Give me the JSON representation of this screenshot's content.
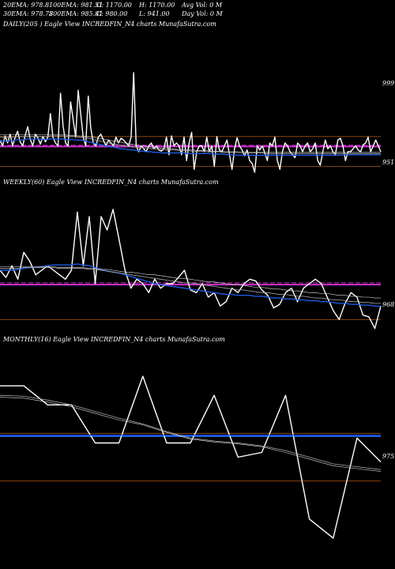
{
  "header": {
    "row1": [
      {
        "label": "20EMA: 978.8"
      },
      {
        "label": "100EMA: 981.51"
      },
      {
        "label": "O: 1170.00"
      },
      {
        "label": "H: 1170.00"
      },
      {
        "label": "Avg Vol: 0  M"
      }
    ],
    "row2": [
      {
        "label": "30EMA: 978.78"
      },
      {
        "label": "200EMA: 985.81"
      },
      {
        "label": "C: 980.00"
      },
      {
        "label": "L: 941.00"
      },
      {
        "label": "Day Vol: 0  M"
      }
    ]
  },
  "colors": {
    "background": "#000000",
    "price": "#ffffff",
    "ema_blue": "#1e5adc",
    "level_magenta": "#cc33cc",
    "grid_brown": "#8b4513",
    "ema_gray": "#aaaaaa"
  },
  "chart_data": [
    {
      "type": "line",
      "title": "DAILY(205                              ) Eagle  View  INCREDFIN_N4  charts MunafaSutra.com",
      "y_tick_labels": [
        "999",
        "951"
      ],
      "ylim": [
        940,
        1180
      ],
      "series": [
        {
          "kind": "price",
          "values": [
            995,
            985,
            1002,
            990,
            1005,
            985,
            1000,
            1010,
            992,
            985,
            1003,
            1018,
            996,
            985,
            1005,
            999,
            988,
            1001,
            992,
            1000,
            1040,
            1000,
            990,
            985,
            1075,
            1020,
            990,
            985,
            1060,
            1030,
            1000,
            1080,
            1040,
            1000,
            985,
            1070,
            1015,
            990,
            985,
            1000,
            1005,
            995,
            985,
            995,
            990,
            985,
            1000,
            990,
            998,
            995,
            990,
            985,
            1000,
            1110,
            985,
            975,
            985,
            980,
            975,
            985,
            990,
            980,
            985,
            978,
            976,
            980,
            1000,
            970,
            1002,
            985,
            990,
            985,
            970,
            1000,
            960,
            990,
            1008,
            945,
            975,
            985,
            985,
            975,
            1000,
            975,
            985,
            950,
            1001,
            978,
            975,
            985,
            995,
            970,
            945,
            980,
            999,
            985,
            978,
            968,
            978,
            960,
            955,
            940,
            985,
            978,
            985,
            973,
            960,
            990,
            985,
            1000,
            960,
            945,
            975,
            990,
            985,
            975,
            970,
            965,
            990,
            985,
            975,
            985,
            990,
            975,
            980,
            990,
            960,
            952,
            975,
            995,
            980,
            985,
            975,
            970,
            995,
            998,
            985,
            960,
            975,
            975,
            980,
            985,
            978,
            975,
            987,
            990,
            1000,
            975,
            985,
            995,
            985,
            975
          ]
        },
        {
          "kind": "ema_blue",
          "values": [
            994,
            993,
            993,
            993,
            994,
            994,
            995,
            996,
            995,
            995,
            996,
            997,
            997,
            996,
            997,
            997,
            996,
            996,
            996,
            996,
            997,
            997,
            997,
            996,
            997,
            997,
            996,
            996,
            996,
            996,
            995,
            995,
            995,
            994,
            993,
            992,
            991,
            990,
            989,
            988,
            987,
            986,
            985,
            984,
            983,
            983,
            982,
            981,
            980,
            980,
            979,
            979,
            978,
            978,
            977,
            977,
            976,
            976,
            975,
            975,
            975,
            974,
            974,
            974,
            973,
            973,
            973,
            973,
            973,
            973,
            973,
            973,
            973,
            973,
            972,
            972,
            972,
            972,
            972,
            972,
            972,
            972,
            972,
            972,
            972,
            971,
            971,
            971,
            971,
            971,
            970,
            970,
            970,
            970,
            969,
            969,
            969,
            969,
            969,
            969,
            969,
            969,
            969,
            969,
            969,
            969,
            969,
            969,
            969,
            969,
            969,
            969,
            969,
            969,
            969,
            969,
            969,
            969,
            969,
            969,
            969,
            969,
            969,
            969,
            969,
            969,
            969,
            969,
            969,
            969,
            969,
            969,
            969,
            969,
            969,
            969,
            970,
            970,
            970,
            970,
            970,
            970,
            970,
            970,
            970,
            970,
            970,
            970,
            970,
            970,
            970,
            970
          ]
        },
        {
          "kind": "ema_gray",
          "values": [
            1000,
            1000,
            1000,
            1000,
            1000,
            1000,
            1000,
            1001,
            1001,
            1001,
            1001,
            1001,
            1001,
            1001,
            1001,
            1001,
            1001,
            1001,
            1001,
            1001,
            1002,
            1002,
            1002,
            1002,
            1002,
            1002,
            1002,
            1001,
            1001,
            1001,
            1001,
            1000,
            1000,
            999,
            999,
            998,
            997,
            996,
            995,
            994,
            993,
            992,
            991,
            990,
            989,
            988,
            988,
            987,
            986,
            985,
            985,
            984,
            984,
            983,
            983,
            982,
            982,
            981,
            981,
            981,
            980,
            980,
            980,
            979,
            979,
            979,
            978,
            978,
            978,
            978,
            978,
            977,
            977,
            977,
            977,
            977,
            976,
            976,
            976,
            976,
            976,
            976,
            975,
            975,
            975,
            975,
            975,
            975,
            974,
            974,
            974,
            974,
            974,
            974,
            974,
            973,
            973,
            973,
            973,
            973,
            973,
            973,
            973,
            973,
            973,
            972,
            972,
            972,
            972,
            972,
            972,
            972,
            972,
            972,
            972,
            972,
            972,
            972,
            972,
            972,
            972,
            972,
            972,
            972,
            972,
            972,
            972,
            972,
            972,
            972,
            972,
            972,
            972,
            972,
            972,
            972,
            972,
            972,
            972,
            972,
            972,
            972,
            972,
            972,
            972,
            972,
            972,
            972,
            972,
            972,
            972,
            972
          ]
        },
        {
          "kind": "ema_gray2",
          "values": [
            1004,
            1004,
            1004,
            1004,
            1004,
            1004,
            1004,
            1004,
            1004,
            1004,
            1004,
            1004,
            1004,
            1004,
            1004,
            1004,
            1004,
            1004,
            1004,
            1004,
            1004,
            1004,
            1004,
            1004,
            1004,
            1004,
            1004,
            1003,
            1003,
            1003,
            1003,
            1002,
            1002,
            1002,
            1001,
            1001,
            1000,
            1000,
            999,
            998,
            997,
            997,
            996,
            995,
            994,
            993,
            993,
            992,
            991,
            990,
            990,
            989,
            988,
            987,
            987,
            986,
            985,
            985,
            984,
            984,
            983,
            983,
            982,
            982,
            981,
            981,
            981,
            980,
            980,
            980,
            979,
            979,
            979,
            979,
            978,
            978,
            978,
            978,
            977,
            977,
            977,
            977,
            977,
            976,
            976,
            976,
            976,
            976,
            976,
            975,
            975,
            975,
            975,
            975,
            975,
            975,
            975,
            975,
            974,
            974,
            974,
            974,
            974,
            974,
            974,
            974,
            974,
            974,
            974,
            974,
            974,
            974,
            974,
            974,
            974,
            974,
            974,
            974,
            974,
            974,
            974,
            974,
            974,
            974,
            974,
            974,
            974,
            974,
            974,
            974,
            974,
            974,
            974,
            974,
            974,
            974,
            974,
            974,
            974,
            974,
            974,
            974,
            974,
            974,
            974,
            974,
            974,
            974,
            974,
            974,
            974,
            974
          ]
        }
      ],
      "levels": [
        {
          "kind": "grid",
          "value": 1001
        },
        {
          "kind": "magenta",
          "value": 984
        },
        {
          "kind": "magenta_dashed",
          "value": 986
        },
        {
          "kind": "grid",
          "value": 950
        }
      ]
    },
    {
      "type": "line",
      "title": "WEEKLY(60) Eagle  View  INCREDFIN_N4  charts MunafaSutra.com",
      "y_tick_labels": [
        "968"
      ],
      "ylim": [
        940,
        1090
      ],
      "series": [
        {
          "kind": "price",
          "values": [
            1000,
            992,
            1005,
            990,
            1020,
            1010,
            995,
            1000,
            1005,
            1000,
            995,
            990,
            1000,
            1065,
            1005,
            1060,
            985,
            1060,
            1045,
            1068,
            1035,
            1000,
            980,
            990,
            985,
            975,
            990,
            980,
            985,
            985,
            992,
            1000,
            978,
            975,
            985,
            970,
            975,
            960,
            965,
            980,
            975,
            985,
            990,
            988,
            978,
            972,
            958,
            962,
            975,
            980,
            965,
            980,
            985,
            990,
            985,
            970,
            955,
            945,
            963,
            975,
            970,
            950,
            948,
            935,
            960
          ]
        },
        {
          "kind": "ema_blue",
          "values": [
            1000,
            1000,
            1000,
            1001,
            1002,
            1003,
            1003,
            1004,
            1005,
            1006,
            1006,
            1006,
            1006,
            1007,
            1006,
            1005,
            1003,
            1001,
            999,
            998,
            997,
            995,
            993,
            991,
            989,
            987,
            985,
            984,
            983,
            982,
            981,
            980,
            979,
            978,
            977,
            976,
            975,
            974,
            973,
            973,
            972,
            972,
            972,
            971,
            971,
            970,
            969,
            969,
            968,
            968,
            967,
            967,
            966,
            966,
            965,
            965,
            964,
            963,
            963,
            962,
            962,
            961,
            961,
            960,
            960
          ]
        },
        {
          "kind": "ema_gray",
          "values": [
            1002,
            1002,
            1002,
            1002,
            1003,
            1003,
            1003,
            1003,
            1003,
            1003,
            1002,
            1002,
            1002,
            1002,
            1002,
            1001,
            1001,
            1000,
            999,
            998,
            997,
            996,
            995,
            994,
            993,
            992,
            991,
            990,
            989,
            988,
            987,
            986,
            986,
            985,
            984,
            983,
            982,
            981,
            980,
            979,
            978,
            978,
            977,
            976,
            975,
            975,
            974,
            973,
            973,
            972,
            971,
            971,
            970,
            969,
            969,
            968,
            967,
            967,
            966,
            965,
            965,
            964,
            964,
            963,
            963
          ]
        },
        {
          "kind": "ema_gray2",
          "values": [
            1004,
            1004,
            1004,
            1004,
            1004,
            1004,
            1004,
            1004,
            1004,
            1004,
            1003,
            1003,
            1003,
            1003,
            1003,
            1002,
            1002,
            1001,
            1001,
            1000,
            999,
            998,
            998,
            997,
            996,
            995,
            995,
            994,
            993,
            992,
            991,
            991,
            990,
            989,
            988,
            987,
            987,
            986,
            985,
            984,
            984,
            983,
            982,
            981,
            981,
            980,
            979,
            979,
            978,
            977,
            977,
            976,
            975,
            975,
            974,
            974,
            973,
            972,
            972,
            971,
            971,
            970,
            970,
            969,
            969
          ]
        }
      ],
      "levels": [
        {
          "kind": "magenta",
          "value": 984
        },
        {
          "kind": "magenta_dashed",
          "value": 986
        },
        {
          "kind": "grid",
          "value": 945
        }
      ]
    },
    {
      "type": "line",
      "title": "MONTHLY(16) Eagle  View  INCREDFIN_N4  charts MunafaSutra.com",
      "y_tick_labels": [
        "975"
      ],
      "ylim": [
        880,
        1100
      ],
      "series": [
        {
          "kind": "price",
          "values": [
            1060,
            1060,
            1040,
            1040,
            1000,
            1000,
            1070,
            1000,
            1000,
            1050,
            985,
            990,
            1050,
            920,
            900,
            1005,
            980
          ]
        },
        {
          "kind": "ema_blue",
          "values": [
            1008,
            1008,
            1008,
            1008,
            1008,
            1008,
            1008,
            1008,
            1008,
            1008,
            1008,
            1008,
            1008,
            1008,
            1008,
            1008,
            1008
          ]
        },
        {
          "kind": "ema_gray",
          "values": [
            1050,
            1049,
            1045,
            1040,
            1033,
            1026,
            1020,
            1012,
            1005,
            1002,
            1000,
            997,
            992,
            985,
            978,
            975,
            972
          ]
        },
        {
          "kind": "ema_gray2",
          "values": [
            1048,
            1047,
            1043,
            1038,
            1031,
            1024,
            1019,
            1011,
            1004,
            1001,
            999,
            996,
            990,
            983,
            976,
            973,
            970
          ]
        }
      ],
      "levels": [
        {
          "kind": "grid",
          "value": 1010
        },
        {
          "kind": "blue_level",
          "value": 1007
        },
        {
          "kind": "grid",
          "value": 960
        }
      ]
    }
  ]
}
